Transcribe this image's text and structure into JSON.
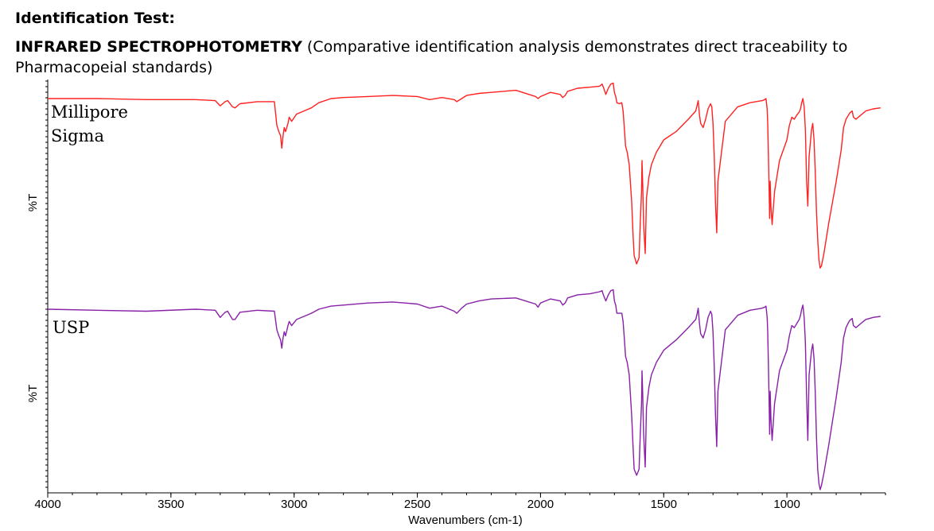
{
  "heading": "Identification Test:",
  "subheading": {
    "strong": "INFRARED SPECTROPHOTOMETRY",
    "rest": " (Comparative identification analysis demonstrates direct traceability to Pharmacopeial standards)"
  },
  "chart_data": {
    "type": "line",
    "xlabel": "Wavenumbers  (cm-1)",
    "xlim": [
      4000,
      600
    ],
    "x_reversed": true,
    "x_ticks": [
      4000,
      3500,
      3000,
      2500,
      2000,
      1500,
      1000
    ],
    "ylabel": "%T",
    "ylim": [
      0,
      100
    ],
    "grid": false,
    "legend": "none",
    "panels": [
      {
        "label_lines": [
          "Millipore",
          "Sigma"
        ],
        "ylabel": "%T",
        "color": "#ff2020",
        "x": [
          4000,
          3800,
          3600,
          3400,
          3320,
          3300,
          3280,
          3270,
          3250,
          3240,
          3220,
          3150,
          3080,
          3070,
          3062,
          3055,
          3050,
          3045,
          3040,
          3035,
          3025,
          3020,
          3010,
          2990,
          2960,
          2930,
          2900,
          2850,
          2800,
          2700,
          2600,
          2500,
          2450,
          2400,
          2350,
          2340,
          2320,
          2300,
          2250,
          2200,
          2100,
          2020,
          2010,
          2000,
          1990,
          1960,
          1920,
          1910,
          1900,
          1890,
          1850,
          1800,
          1760,
          1750,
          1745,
          1735,
          1725,
          1715,
          1705,
          1700,
          1695,
          1690,
          1680,
          1670,
          1665,
          1660,
          1655,
          1648,
          1640,
          1630,
          1625,
          1620,
          1610,
          1600,
          1595,
          1590,
          1588,
          1585,
          1582,
          1575,
          1570,
          1560,
          1550,
          1530,
          1500,
          1450,
          1400,
          1370,
          1365,
          1360,
          1355,
          1350,
          1340,
          1330,
          1320,
          1310,
          1305,
          1300,
          1295,
          1290,
          1285,
          1280,
          1250,
          1200,
          1150,
          1100,
          1090,
          1085,
          1080,
          1078,
          1075,
          1072,
          1070,
          1068,
          1065,
          1060,
          1050,
          1030,
          1000,
          990,
          980,
          970,
          960,
          950,
          945,
          940,
          935,
          930,
          925,
          920,
          915,
          910,
          900,
          895,
          890,
          885,
          880,
          875,
          870,
          865,
          860,
          850,
          830,
          800,
          780,
          770,
          760,
          750,
          745,
          740,
          735,
          730,
          720,
          700,
          680,
          650,
          620
        ],
        "y": [
          90,
          90,
          89.5,
          89.5,
          89,
          86.5,
          88.5,
          89,
          86,
          85.5,
          87.5,
          88.5,
          88.5,
          77,
          74,
          72,
          66,
          72,
          76,
          74,
          78,
          81,
          79,
          82.5,
          84,
          85.5,
          88,
          90,
          90.5,
          91,
          91.5,
          91,
          89.5,
          90.5,
          89.5,
          88.5,
          90,
          91.5,
          92.5,
          93,
          94,
          91,
          90,
          91,
          91.5,
          93,
          92,
          90.5,
          91.5,
          93.5,
          95,
          95.5,
          96,
          97,
          95.5,
          92,
          95,
          97,
          97.5,
          93,
          91,
          88,
          87.5,
          88,
          84,
          76,
          67,
          64,
          58,
          40,
          25,
          14,
          10,
          13,
          30,
          45,
          60,
          48,
          30,
          15,
          42,
          52,
          58,
          64,
          70,
          74,
          80,
          84,
          86.5,
          89,
          82,
          78,
          76,
          80,
          85,
          87.5,
          86,
          78,
          62,
          40,
          25,
          50,
          79,
          86,
          88,
          89,
          89.5,
          90,
          85,
          78,
          62,
          45,
          32,
          50,
          38,
          29,
          45,
          60,
          70,
          77,
          81,
          80,
          82,
          83.5,
          85,
          88,
          90,
          86,
          75,
          50,
          38,
          62,
          75,
          78,
          70,
          55,
          35,
          22,
          12,
          8,
          9,
          15,
          30,
          50,
          65,
          76,
          80,
          82,
          83,
          83.5,
          84,
          81,
          80,
          82,
          84,
          85,
          85.5
        ]
      },
      {
        "label_lines": [
          "USP"
        ],
        "ylabel": "%T",
        "color": "#8820a8",
        "x": [
          4000,
          3800,
          3600,
          3400,
          3320,
          3300,
          3280,
          3270,
          3250,
          3240,
          3220,
          3150,
          3080,
          3070,
          3062,
          3055,
          3050,
          3045,
          3040,
          3035,
          3025,
          3020,
          3010,
          2990,
          2960,
          2930,
          2900,
          2850,
          2800,
          2700,
          2600,
          2500,
          2450,
          2400,
          2350,
          2340,
          2320,
          2300,
          2250,
          2200,
          2100,
          2020,
          2010,
          2000,
          1990,
          1960,
          1920,
          1910,
          1900,
          1890,
          1850,
          1800,
          1760,
          1750,
          1745,
          1735,
          1725,
          1715,
          1705,
          1700,
          1695,
          1690,
          1680,
          1670,
          1665,
          1660,
          1655,
          1648,
          1640,
          1630,
          1625,
          1620,
          1610,
          1600,
          1595,
          1590,
          1588,
          1585,
          1582,
          1575,
          1570,
          1560,
          1550,
          1530,
          1500,
          1450,
          1400,
          1370,
          1365,
          1360,
          1355,
          1350,
          1340,
          1330,
          1320,
          1310,
          1305,
          1300,
          1295,
          1290,
          1285,
          1280,
          1250,
          1200,
          1150,
          1100,
          1090,
          1085,
          1080,
          1078,
          1075,
          1072,
          1070,
          1068,
          1065,
          1060,
          1050,
          1030,
          1000,
          990,
          980,
          970,
          960,
          950,
          945,
          940,
          935,
          930,
          925,
          920,
          915,
          910,
          900,
          895,
          890,
          885,
          880,
          875,
          870,
          865,
          860,
          850,
          830,
          800,
          780,
          770,
          760,
          750,
          745,
          740,
          735,
          730,
          720,
          700,
          680,
          650,
          620
        ],
        "y": [
          88,
          87.5,
          87,
          88,
          87.5,
          84,
          86.5,
          87,
          83,
          83,
          86.5,
          87.5,
          87,
          78,
          75,
          73,
          69,
          74,
          77,
          75,
          80,
          82,
          80,
          83,
          84.5,
          86,
          88,
          89.5,
          90,
          91,
          91.5,
          90.5,
          88.5,
          89.5,
          87,
          86,
          88.5,
          90.5,
          92,
          93,
          93.5,
          90.5,
          89,
          91,
          91.5,
          93,
          92,
          90,
          91,
          93.5,
          95,
          95.5,
          96.5,
          97,
          95,
          92,
          95,
          97,
          97.5,
          92,
          90,
          86,
          86,
          86,
          82,
          74,
          65,
          62,
          56,
          36,
          22,
          10,
          7,
          10,
          27,
          42,
          58,
          46,
          28,
          11,
          40,
          50,
          56,
          62,
          68,
          73,
          79,
          83,
          85.5,
          88.5,
          81,
          76,
          74,
          78,
          84,
          87,
          85.5,
          77,
          60,
          37,
          21,
          48,
          78,
          85,
          87.5,
          88.5,
          89,
          89.5,
          84,
          77,
          60,
          42,
          27,
          48,
          35,
          24,
          42,
          58,
          68,
          75,
          80,
          79,
          81,
          83,
          85,
          88,
          90,
          84,
          72,
          45,
          24,
          56,
          68,
          71,
          64,
          48,
          25,
          10,
          3,
          0,
          2,
          8,
          22,
          45,
          62,
          74,
          79,
          81.5,
          82.5,
          83,
          83.5,
          80,
          79,
          81,
          83,
          84,
          84.5
        ]
      }
    ]
  }
}
